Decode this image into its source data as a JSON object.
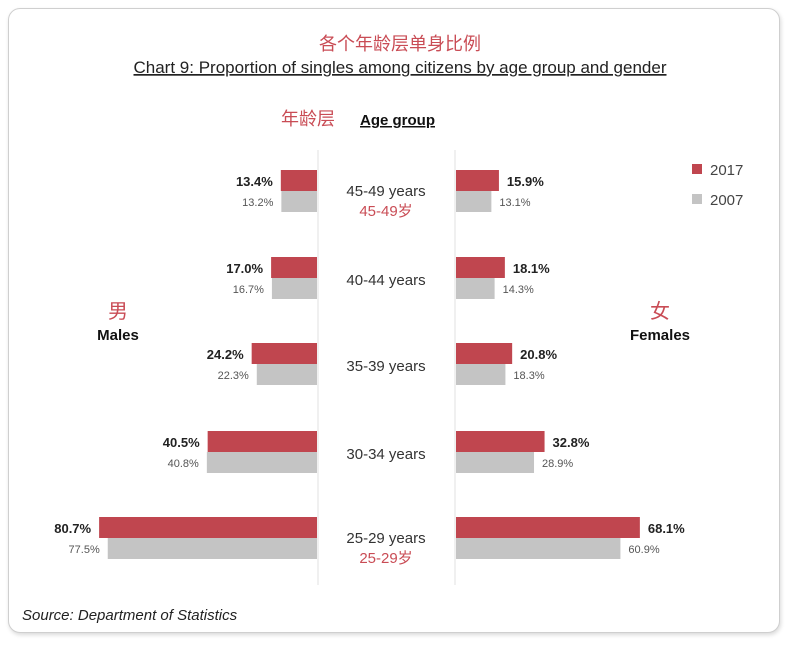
{
  "chart_data": {
    "type": "bar",
    "title_zh": "各个年龄层单身比例",
    "title": "Chart 9: Proportion of singles among citizens by age group and gender",
    "category_header_zh": "年龄层",
    "category_header": "Age group",
    "categories": [
      "45-49 years",
      "40-44 years",
      "35-39 years",
      "30-34 years",
      "25-29 years"
    ],
    "category_labels_zh": [
      "45-49岁",
      "",
      "",
      "",
      "25-29岁"
    ],
    "groups": [
      {
        "name": "Males",
        "name_zh": "男",
        "series": [
          {
            "name": "2017",
            "values": [
              13.4,
              17.0,
              24.2,
              40.5,
              80.7
            ]
          },
          {
            "name": "2007",
            "values": [
              13.2,
              16.7,
              22.3,
              40.8,
              77.5
            ]
          }
        ]
      },
      {
        "name": "Females",
        "name_zh": "女",
        "series": [
          {
            "name": "2017",
            "values": [
              15.9,
              18.1,
              20.8,
              32.8,
              68.1
            ]
          },
          {
            "name": "2007",
            "values": [
              13.1,
              14.3,
              18.3,
              28.9,
              60.9
            ]
          }
        ]
      }
    ],
    "legend": [
      "2017",
      "2007"
    ],
    "legend_position": "top-right",
    "colors": {
      "2017": "#c0464f",
      "2007": "#c4c4c4"
    },
    "grid": false,
    "source": "Source: Department of Statistics"
  }
}
